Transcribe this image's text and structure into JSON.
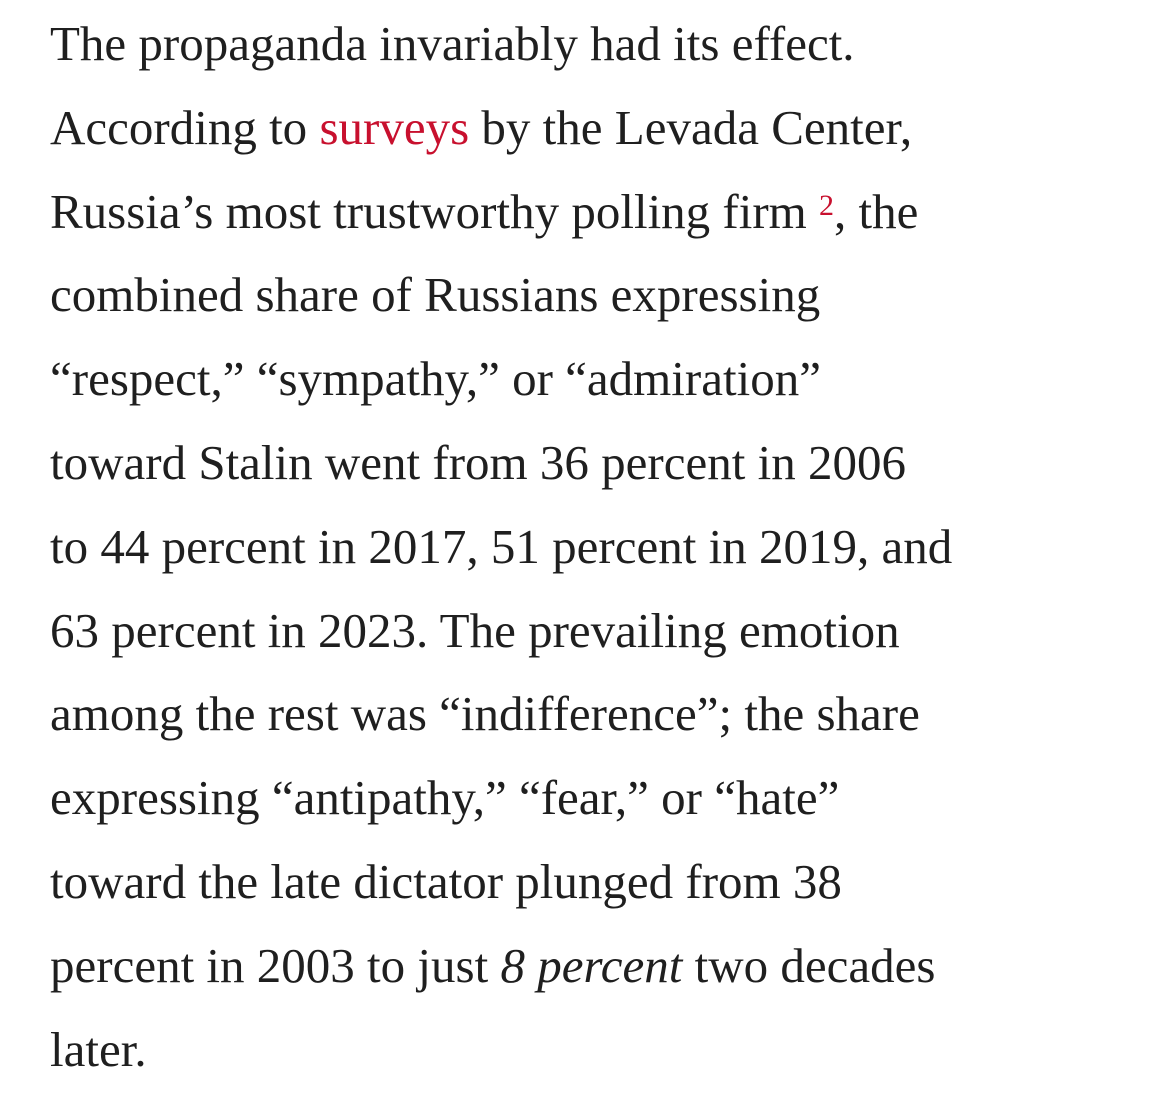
{
  "paragraph": {
    "l1": "The propaganda invariably had its effect.",
    "l2_a": "According to ",
    "l2_link": "surveys",
    "l2_b": " by the Levada Center,",
    "l3_a": "Russia’s most trustworthy polling firm ",
    "l3_footnote": "2",
    "l3_b": ", the",
    "l4": "combined share of Russians expressing",
    "l5": "“respect,” “sympathy,” or “admiration”",
    "l6": "toward Stalin went from 36 percent in 2006",
    "l7": "to 44 percent in 2017, 51 percent in 2019, and",
    "l8": "63 percent in 2023. The prevailing emotion",
    "l9": "among the rest was “indifference”; the share",
    "l10": "expressing “antipathy,” “fear,” or “hate”",
    "l11": "toward the late dictator plunged from 38",
    "l12_a": "percent in 2003 to just ",
    "l12_em": "8 percent",
    "l12_b": " two decades",
    "l13": "later."
  },
  "colors": {
    "text": "#1f1f1f",
    "link": "#c8102e",
    "background": "#ffffff"
  }
}
